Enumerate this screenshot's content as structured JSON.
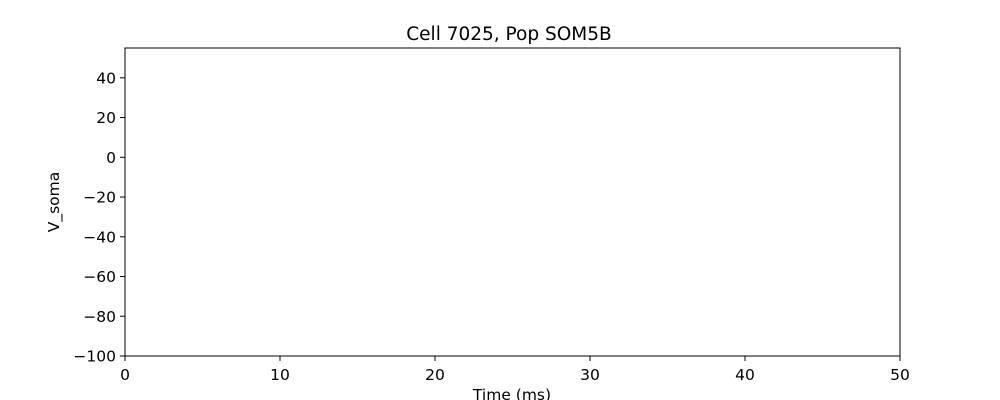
{
  "chart_data": {
    "type": "line",
    "title": "Cell 7025, Pop SOM5B",
    "xlabel": "Time (ms)",
    "ylabel": "V_soma",
    "xlim": [
      0,
      50
    ],
    "ylim": [
      -100,
      55
    ],
    "x_ticks": [
      0,
      10,
      20,
      30,
      40,
      50
    ],
    "x_tick_labels": [
      "0",
      "10",
      "20",
      "30",
      "40",
      "50"
    ],
    "y_ticks": [
      -100,
      -80,
      -60,
      -40,
      -20,
      0,
      20,
      40
    ],
    "y_tick_labels": [
      "−100",
      "−80",
      "−60",
      "−40",
      "−20",
      "0",
      "20",
      "40"
    ],
    "series": [],
    "grid": false,
    "legend": "none"
  }
}
